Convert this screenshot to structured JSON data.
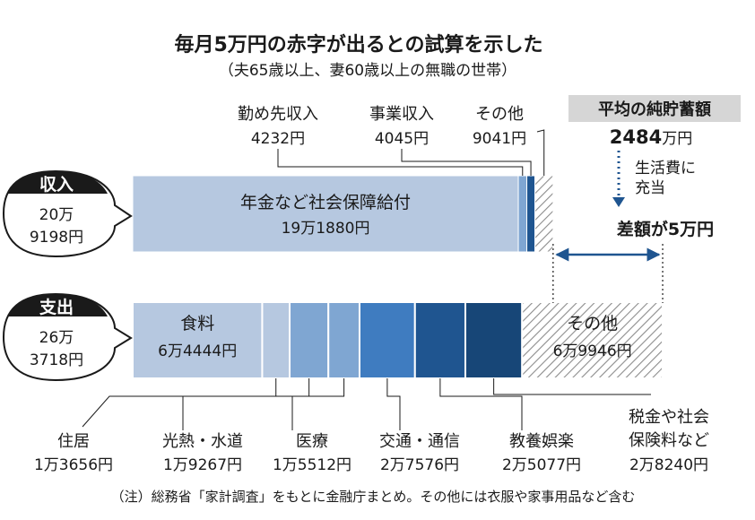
{
  "title": "毎月5万円の赤字が出るとの試算を示した",
  "subtitle": "（夫65歳以上、妻60歳以上の無職の世帯）",
  "note": "（注）総務省「家計調査」をもとに金融庁まとめ。その他には衣服や家事用品など含む",
  "colors": {
    "light": "#b6c8e0",
    "mid": "#7fa6d2",
    "blue": "#3f7cc0",
    "dark": "#1f5590",
    "darkest": "#174677",
    "hatch": "#8c8c8c",
    "text": "#1a1a1a"
  },
  "chart_data": {
    "type": "bar",
    "orientation": "horizontal-stacked",
    "unit": "円",
    "scale_max": 267718,
    "income": {
      "label": "収入",
      "total_value": 209198,
      "total_lines": [
        "20万",
        "9198円"
      ],
      "segments": [
        {
          "name": "年金など社会保障給付",
          "value": 191880,
          "value_label": "19万1880円",
          "color": "light"
        },
        {
          "name": "勤め先収入",
          "value": 4232,
          "value_label": "4232円",
          "color": "mid"
        },
        {
          "name": "事業収入",
          "value": 4045,
          "value_label": "4045円",
          "color": "dark"
        },
        {
          "name": "その他",
          "value": 9041,
          "value_label": "9041円",
          "color": "hatch"
        }
      ]
    },
    "expense": {
      "label": "支出",
      "total_value": 263718,
      "total_lines": [
        "26万",
        "3718円"
      ],
      "segments": [
        {
          "name": "食料",
          "value": 64444,
          "value_label": "6万4444円",
          "color": "light"
        },
        {
          "name": "住居",
          "value": 13656,
          "value_label": "1万3656円",
          "color": "light"
        },
        {
          "name": "光熱・水道",
          "value": 19267,
          "value_label": "1万9267円",
          "color": "mid"
        },
        {
          "name": "医療",
          "value": 15512,
          "value_label": "1万5512円",
          "color": "mid"
        },
        {
          "name": "交通・通信",
          "value": 27576,
          "value_label": "2万7576円",
          "color": "blue"
        },
        {
          "name": "教養娯楽",
          "value": 25077,
          "value_label": "2万5077円",
          "color": "dark"
        },
        {
          "name": "税金や社会保険料など",
          "name_lines": [
            "税金や社会",
            "保険料など"
          ],
          "value": 28240,
          "value_label": "2万8240円",
          "color": "darkest"
        },
        {
          "name": "その他",
          "value": 69946,
          "value_label": "6万9946円",
          "color": "hatch"
        }
      ]
    },
    "savings": {
      "label": "平均の純貯蓄額",
      "value_num": "2484",
      "value_unit": "万円",
      "note_lines": [
        "生活費に",
        "充当"
      ]
    },
    "gap": {
      "label": "差額が5万円"
    }
  }
}
